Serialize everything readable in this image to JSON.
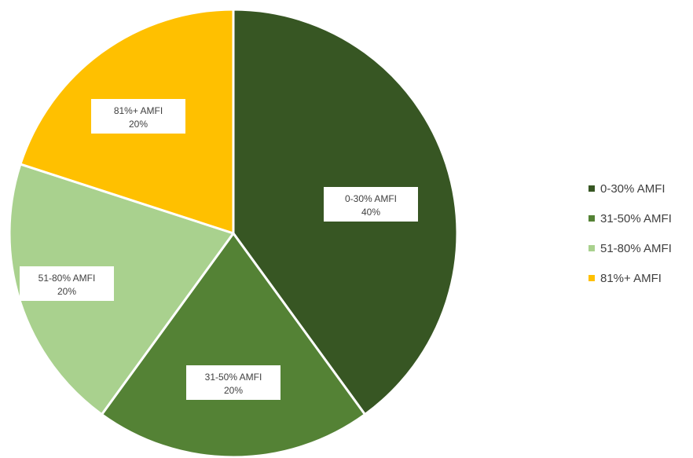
{
  "chart_data": {
    "type": "pie",
    "title": "",
    "start_angle_deg": 0,
    "direction": "clockwise",
    "legend_placement": "right",
    "slices": [
      {
        "label": "0-30% AMFI",
        "value": 40,
        "value_label": "40%",
        "color": "#375623"
      },
      {
        "label": "31-50% AMFI",
        "value": 20,
        "value_label": "20%",
        "color": "#548235"
      },
      {
        "label": "51-80% AMFI",
        "value": 20,
        "value_label": "20%",
        "color": "#A9D18E"
      },
      {
        "label": "81%+ AMFI",
        "value": 20,
        "value_label": "20%",
        "color": "#FFC000"
      }
    ]
  }
}
